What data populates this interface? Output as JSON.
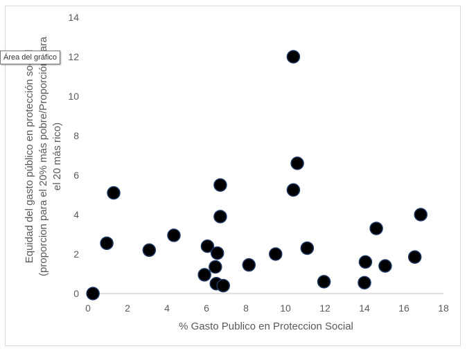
{
  "tooltip": {
    "text": "Área del gráfico"
  },
  "colors": {
    "marker_fill": "#000000",
    "marker_stroke": "#1f3864",
    "text": "#595959",
    "axis": "#bfbfbf",
    "border": "#d9d9d9"
  },
  "chart_data": {
    "type": "scatter",
    "xlabel": "% Gasto Publico en Proteccion Social",
    "ylabel": [
      "Equidad del gasto público en protección social",
      "(proporcion para el 20% más pobre/Proporción para",
      "el 20 más rico)"
    ],
    "xlim": [
      0,
      18
    ],
    "ylim": [
      0,
      14
    ],
    "xticks": [
      0,
      2,
      4,
      6,
      8,
      10,
      12,
      14,
      16,
      18
    ],
    "yticks": [
      0,
      2,
      4,
      6,
      8,
      10,
      12,
      14
    ],
    "grid": false,
    "legend": "none",
    "points": [
      {
        "x": 0.25,
        "y": 0.0
      },
      {
        "x": 0.95,
        "y": 2.55
      },
      {
        "x": 1.3,
        "y": 5.1
      },
      {
        "x": 3.1,
        "y": 2.2
      },
      {
        "x": 4.35,
        "y": 2.95
      },
      {
        "x": 5.9,
        "y": 0.95
      },
      {
        "x": 6.05,
        "y": 2.4
      },
      {
        "x": 6.45,
        "y": 1.35
      },
      {
        "x": 6.5,
        "y": 0.5
      },
      {
        "x": 6.55,
        "y": 2.05
      },
      {
        "x": 6.7,
        "y": 5.5
      },
      {
        "x": 6.7,
        "y": 3.9
      },
      {
        "x": 6.85,
        "y": 0.4
      },
      {
        "x": 8.15,
        "y": 1.45
      },
      {
        "x": 9.5,
        "y": 2.0
      },
      {
        "x": 10.4,
        "y": 12.0
      },
      {
        "x": 10.4,
        "y": 5.25
      },
      {
        "x": 10.6,
        "y": 6.6
      },
      {
        "x": 11.1,
        "y": 2.3
      },
      {
        "x": 11.95,
        "y": 0.6
      },
      {
        "x": 14.0,
        "y": 0.55
      },
      {
        "x": 14.05,
        "y": 1.6
      },
      {
        "x": 14.6,
        "y": 3.3
      },
      {
        "x": 15.05,
        "y": 1.4
      },
      {
        "x": 16.55,
        "y": 1.85
      },
      {
        "x": 16.85,
        "y": 4.0
      }
    ]
  }
}
